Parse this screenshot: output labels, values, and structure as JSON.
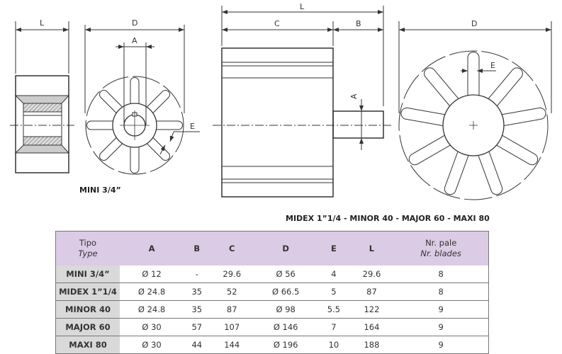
{
  "drawing": {
    "mini": {
      "caption": "MINI 3/4”",
      "label_L": "L",
      "label_D": "D",
      "label_A": "A",
      "label_E": "E",
      "blades": 8
    },
    "large": {
      "caption": "MIDEX 1”1/4 - MINOR 40 - MAJOR 60 - MAXI 80",
      "label_L": "L",
      "label_C": "C",
      "label_B": "B",
      "label_A": "A",
      "label_D": "D",
      "label_E": "E",
      "blades": 9
    }
  },
  "table": {
    "header": {
      "type_it": "Tipo",
      "type_en": "Type",
      "cols": [
        "A",
        "B",
        "C",
        "D",
        "E",
        "L"
      ],
      "blades_it": "Nr. pale",
      "blades_en": "Nr. blades"
    },
    "rows": [
      {
        "type": "MINI 3/4”",
        "values": [
          "Ø 12",
          "-",
          "29.6",
          "Ø 56",
          "4",
          "29.6",
          "8"
        ]
      },
      {
        "type": "MIDEX 1”1/4",
        "values": [
          "Ø 24.8",
          "35",
          "52",
          "Ø 66.5",
          "5",
          "87",
          "8"
        ]
      },
      {
        "type": "MINOR 40",
        "values": [
          "Ø 24.8",
          "35",
          "87",
          "Ø 98",
          "5.5",
          "122",
          "9"
        ]
      },
      {
        "type": "MAJOR 60",
        "values": [
          "Ø 30",
          "57",
          "107",
          "Ø 146",
          "7",
          "164",
          "9"
        ]
      },
      {
        "type": "MAXI 80",
        "values": [
          "Ø 30",
          "44",
          "144",
          "Ø 196",
          "10",
          "188",
          "9"
        ]
      }
    ],
    "colors": {
      "header_bg": "#dccbe4",
      "type_col_bg": "#d9d9d9"
    }
  }
}
